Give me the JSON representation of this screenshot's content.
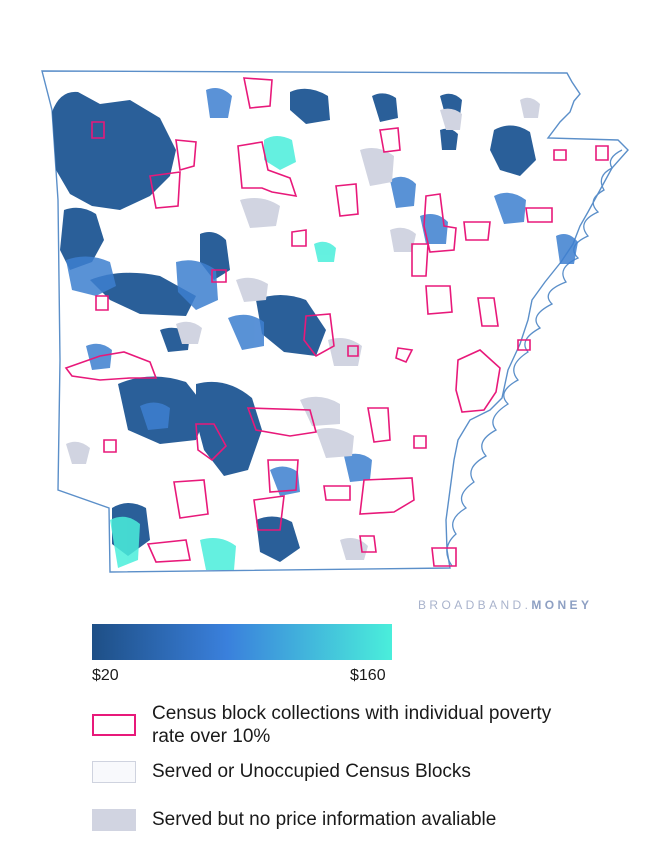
{
  "brand": {
    "prefix": "BROADBAND.",
    "suffix": "MONEY"
  },
  "colors": {
    "low_price": "#1e4f86",
    "mid_price": "#3a80dc",
    "high_price": "#4aeedb",
    "poverty_outline": "#e8197a",
    "state_outline": "#5b8fc9",
    "river": "#5b8fc9",
    "no_price": "#d1d4e1",
    "served": "#f8f9fc"
  },
  "legend": {
    "scale_min": "$20",
    "scale_max": "$160",
    "poverty": "Census block collections with individual poverty rate over 10%",
    "served": "Served or Unoccupied Census Blocks",
    "no_price": "Served but no price information avaliable"
  }
}
